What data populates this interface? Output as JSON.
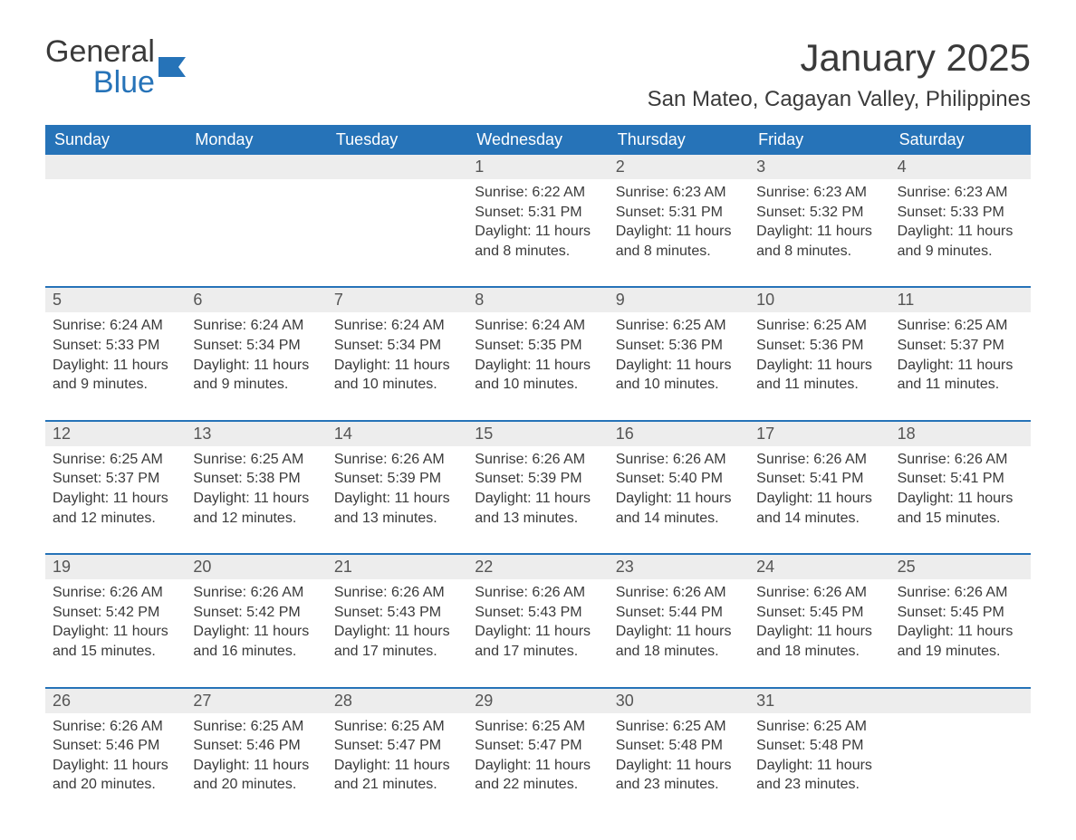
{
  "logo": {
    "general": "General",
    "blue": "Blue"
  },
  "header": {
    "month_title": "January 2025",
    "location": "San Mateo, Cagayan Valley, Philippines"
  },
  "colors": {
    "accent": "#2673b8",
    "daynum_bg": "#ededed",
    "text": "#3a3a3a",
    "background": "#ffffff"
  },
  "days_of_week": [
    "Sunday",
    "Monday",
    "Tuesday",
    "Wednesday",
    "Thursday",
    "Friday",
    "Saturday"
  ],
  "weeks": [
    [
      {
        "day": "",
        "sunrise": "",
        "sunset": "",
        "daylight": ""
      },
      {
        "day": "",
        "sunrise": "",
        "sunset": "",
        "daylight": ""
      },
      {
        "day": "",
        "sunrise": "",
        "sunset": "",
        "daylight": ""
      },
      {
        "day": "1",
        "sunrise": "Sunrise: 6:22 AM",
        "sunset": "Sunset: 5:31 PM",
        "daylight": "Daylight: 11 hours and 8 minutes."
      },
      {
        "day": "2",
        "sunrise": "Sunrise: 6:23 AM",
        "sunset": "Sunset: 5:31 PM",
        "daylight": "Daylight: 11 hours and 8 minutes."
      },
      {
        "day": "3",
        "sunrise": "Sunrise: 6:23 AM",
        "sunset": "Sunset: 5:32 PM",
        "daylight": "Daylight: 11 hours and 8 minutes."
      },
      {
        "day": "4",
        "sunrise": "Sunrise: 6:23 AM",
        "sunset": "Sunset: 5:33 PM",
        "daylight": "Daylight: 11 hours and 9 minutes."
      }
    ],
    [
      {
        "day": "5",
        "sunrise": "Sunrise: 6:24 AM",
        "sunset": "Sunset: 5:33 PM",
        "daylight": "Daylight: 11 hours and 9 minutes."
      },
      {
        "day": "6",
        "sunrise": "Sunrise: 6:24 AM",
        "sunset": "Sunset: 5:34 PM",
        "daylight": "Daylight: 11 hours and 9 minutes."
      },
      {
        "day": "7",
        "sunrise": "Sunrise: 6:24 AM",
        "sunset": "Sunset: 5:34 PM",
        "daylight": "Daylight: 11 hours and 10 minutes."
      },
      {
        "day": "8",
        "sunrise": "Sunrise: 6:24 AM",
        "sunset": "Sunset: 5:35 PM",
        "daylight": "Daylight: 11 hours and 10 minutes."
      },
      {
        "day": "9",
        "sunrise": "Sunrise: 6:25 AM",
        "sunset": "Sunset: 5:36 PM",
        "daylight": "Daylight: 11 hours and 10 minutes."
      },
      {
        "day": "10",
        "sunrise": "Sunrise: 6:25 AM",
        "sunset": "Sunset: 5:36 PM",
        "daylight": "Daylight: 11 hours and 11 minutes."
      },
      {
        "day": "11",
        "sunrise": "Sunrise: 6:25 AM",
        "sunset": "Sunset: 5:37 PM",
        "daylight": "Daylight: 11 hours and 11 minutes."
      }
    ],
    [
      {
        "day": "12",
        "sunrise": "Sunrise: 6:25 AM",
        "sunset": "Sunset: 5:37 PM",
        "daylight": "Daylight: 11 hours and 12 minutes."
      },
      {
        "day": "13",
        "sunrise": "Sunrise: 6:25 AM",
        "sunset": "Sunset: 5:38 PM",
        "daylight": "Daylight: 11 hours and 12 minutes."
      },
      {
        "day": "14",
        "sunrise": "Sunrise: 6:26 AM",
        "sunset": "Sunset: 5:39 PM",
        "daylight": "Daylight: 11 hours and 13 minutes."
      },
      {
        "day": "15",
        "sunrise": "Sunrise: 6:26 AM",
        "sunset": "Sunset: 5:39 PM",
        "daylight": "Daylight: 11 hours and 13 minutes."
      },
      {
        "day": "16",
        "sunrise": "Sunrise: 6:26 AM",
        "sunset": "Sunset: 5:40 PM",
        "daylight": "Daylight: 11 hours and 14 minutes."
      },
      {
        "day": "17",
        "sunrise": "Sunrise: 6:26 AM",
        "sunset": "Sunset: 5:41 PM",
        "daylight": "Daylight: 11 hours and 14 minutes."
      },
      {
        "day": "18",
        "sunrise": "Sunrise: 6:26 AM",
        "sunset": "Sunset: 5:41 PM",
        "daylight": "Daylight: 11 hours and 15 minutes."
      }
    ],
    [
      {
        "day": "19",
        "sunrise": "Sunrise: 6:26 AM",
        "sunset": "Sunset: 5:42 PM",
        "daylight": "Daylight: 11 hours and 15 minutes."
      },
      {
        "day": "20",
        "sunrise": "Sunrise: 6:26 AM",
        "sunset": "Sunset: 5:42 PM",
        "daylight": "Daylight: 11 hours and 16 minutes."
      },
      {
        "day": "21",
        "sunrise": "Sunrise: 6:26 AM",
        "sunset": "Sunset: 5:43 PM",
        "daylight": "Daylight: 11 hours and 17 minutes."
      },
      {
        "day": "22",
        "sunrise": "Sunrise: 6:26 AM",
        "sunset": "Sunset: 5:43 PM",
        "daylight": "Daylight: 11 hours and 17 minutes."
      },
      {
        "day": "23",
        "sunrise": "Sunrise: 6:26 AM",
        "sunset": "Sunset: 5:44 PM",
        "daylight": "Daylight: 11 hours and 18 minutes."
      },
      {
        "day": "24",
        "sunrise": "Sunrise: 6:26 AM",
        "sunset": "Sunset: 5:45 PM",
        "daylight": "Daylight: 11 hours and 18 minutes."
      },
      {
        "day": "25",
        "sunrise": "Sunrise: 6:26 AM",
        "sunset": "Sunset: 5:45 PM",
        "daylight": "Daylight: 11 hours and 19 minutes."
      }
    ],
    [
      {
        "day": "26",
        "sunrise": "Sunrise: 6:26 AM",
        "sunset": "Sunset: 5:46 PM",
        "daylight": "Daylight: 11 hours and 20 minutes."
      },
      {
        "day": "27",
        "sunrise": "Sunrise: 6:25 AM",
        "sunset": "Sunset: 5:46 PM",
        "daylight": "Daylight: 11 hours and 20 minutes."
      },
      {
        "day": "28",
        "sunrise": "Sunrise: 6:25 AM",
        "sunset": "Sunset: 5:47 PM",
        "daylight": "Daylight: 11 hours and 21 minutes."
      },
      {
        "day": "29",
        "sunrise": "Sunrise: 6:25 AM",
        "sunset": "Sunset: 5:47 PM",
        "daylight": "Daylight: 11 hours and 22 minutes."
      },
      {
        "day": "30",
        "sunrise": "Sunrise: 6:25 AM",
        "sunset": "Sunset: 5:48 PM",
        "daylight": "Daylight: 11 hours and 23 minutes."
      },
      {
        "day": "31",
        "sunrise": "Sunrise: 6:25 AM",
        "sunset": "Sunset: 5:48 PM",
        "daylight": "Daylight: 11 hours and 23 minutes."
      },
      {
        "day": "",
        "sunrise": "",
        "sunset": "",
        "daylight": ""
      }
    ]
  ]
}
